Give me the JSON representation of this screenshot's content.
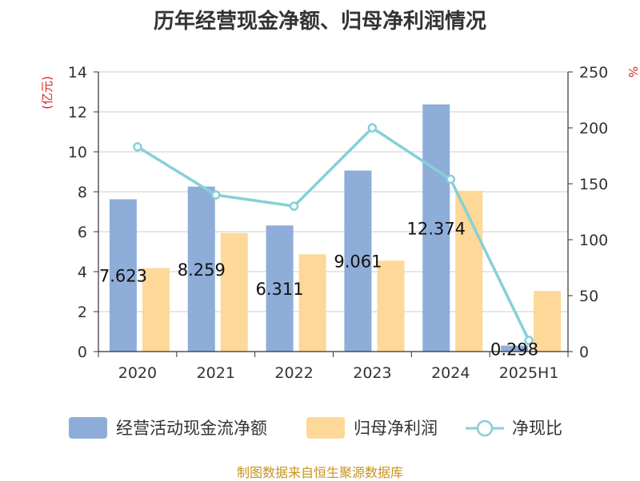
{
  "chart_data": {
    "type": "bar",
    "title": "历年经营现金净额、归母净利润情况",
    "categories": [
      "2020",
      "2021",
      "2022",
      "2023",
      "2024",
      "2025H1"
    ],
    "y_left": {
      "unit": "(亿元)",
      "ylim": [
        0,
        14
      ],
      "ticks": [
        "0",
        "2",
        "4",
        "6",
        "8",
        "10",
        "12",
        "14"
      ]
    },
    "y_right": {
      "unit": "%",
      "ylim": [
        0,
        250
      ],
      "ticks": [
        "0",
        "50",
        "100",
        "150",
        "200",
        "250"
      ]
    },
    "series": [
      {
        "name": "经营活动现金流净额",
        "type": "bar",
        "axis": "left",
        "color": "#8eadd8",
        "values": [
          7.623,
          8.259,
          6.311,
          9.061,
          12.374,
          0.298
        ],
        "labels": [
          "7.623",
          "8.259",
          "6.311",
          "9.061",
          "12.374",
          "0.298"
        ]
      },
      {
        "name": "归母净利润",
        "type": "bar",
        "axis": "left",
        "color": "#fdd899",
        "values": [
          4.18,
          5.93,
          4.87,
          4.55,
          8.05,
          3.03
        ]
      },
      {
        "name": "净现比",
        "type": "line",
        "axis": "right",
        "color": "#86d0d6",
        "values": [
          183,
          140,
          130,
          200,
          154,
          10
        ]
      }
    ],
    "grid": true,
    "legend": "bottom",
    "source": "制图数据来自恒生聚源数据库"
  }
}
